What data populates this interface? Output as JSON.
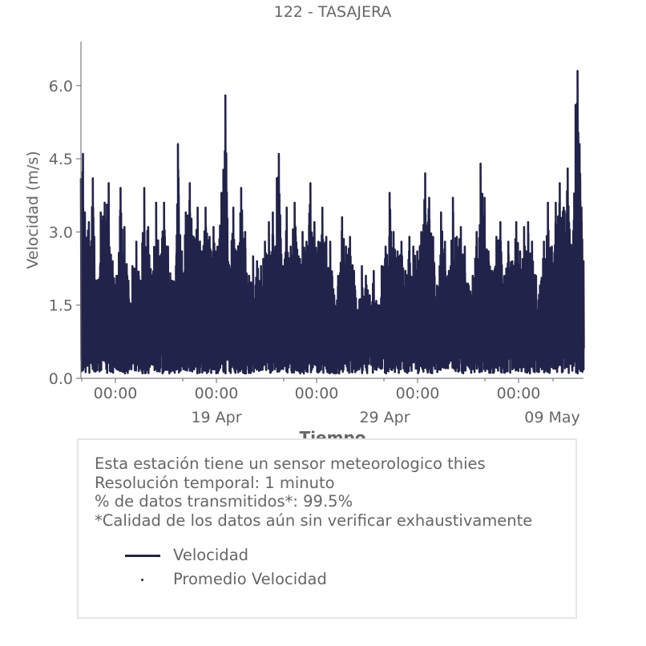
{
  "chart_data": {
    "type": "line",
    "title": "122 - TASAJERA",
    "xlabel": "Tiempo",
    "ylabel": "Velocidad (m/s)",
    "ylim": [
      0,
      6.9
    ],
    "yticks": [
      "0.0",
      "1.5",
      "3.0",
      "4.5",
      "6.0"
    ],
    "xticks_major": [
      "00:00",
      "00:00",
      "00:00",
      "00:00",
      "00:00"
    ],
    "xticks_minor": [
      "19 Apr",
      "29 Apr",
      "09 May"
    ],
    "grid": false,
    "color": "#22234a",
    "series": [
      {
        "name": "Velocidad",
        "peaks": [
          [
            0.0,
            4.1
          ],
          [
            0.01,
            4.6
          ],
          [
            0.02,
            3.4
          ],
          [
            0.04,
            3.2
          ],
          [
            0.06,
            4.1
          ],
          [
            0.08,
            2.0
          ],
          [
            0.1,
            3.4
          ],
          [
            0.12,
            3.6
          ],
          [
            0.14,
            4.0
          ],
          [
            0.16,
            2.4
          ],
          [
            0.18,
            2.1
          ],
          [
            0.2,
            3.9
          ],
          [
            0.22,
            3.1
          ],
          [
            0.24,
            2.0
          ],
          [
            0.26,
            2.3
          ],
          [
            0.28,
            2.8
          ],
          [
            0.3,
            2.0
          ],
          [
            0.32,
            3.9
          ],
          [
            0.34,
            3.1
          ],
          [
            0.36,
            2.1
          ],
          [
            0.38,
            3.6
          ],
          [
            0.4,
            2.5
          ],
          [
            0.42,
            3.6
          ],
          [
            0.44,
            2.7
          ],
          [
            0.46,
            2.0
          ],
          [
            0.48,
            2.3
          ],
          [
            0.49,
            4.8
          ],
          [
            0.51,
            2.6
          ],
          [
            0.53,
            3.4
          ],
          [
            0.55,
            4.0
          ],
          [
            0.57,
            2.9
          ],
          [
            0.59,
            3.5
          ],
          [
            0.61,
            2.6
          ],
          [
            0.63,
            3.5
          ],
          [
            0.65,
            2.9
          ],
          [
            0.67,
            3.1
          ],
          [
            0.69,
            2.7
          ],
          [
            0.71,
            3.8
          ],
          [
            0.73,
            5.8
          ],
          [
            0.75,
            2.3
          ],
          [
            0.77,
            3.5
          ],
          [
            0.79,
            2.6
          ],
          [
            0.81,
            3.9
          ],
          [
            0.83,
            3.0
          ],
          [
            0.85,
            2.1
          ],
          [
            0.87,
            2.5
          ],
          [
            0.89,
            2.4
          ],
          [
            0.91,
            2.3
          ],
          [
            0.93,
            2.8
          ],
          [
            0.95,
            3.2
          ],
          [
            0.97,
            3.4
          ],
          [
            0.99,
            4.1
          ],
          [
            1.0,
            4.6
          ],
          [
            1.02,
            2.3
          ],
          [
            1.04,
            3.5
          ],
          [
            1.06,
            2.7
          ],
          [
            1.08,
            3.6
          ],
          [
            1.1,
            2.5
          ],
          [
            1.12,
            3.0
          ],
          [
            1.14,
            2.8
          ],
          [
            1.16,
            4.0
          ],
          [
            1.18,
            3.2
          ],
          [
            1.2,
            2.8
          ],
          [
            1.22,
            3.5
          ],
          [
            1.24,
            2.9
          ],
          [
            1.26,
            2.8
          ],
          [
            1.28,
            1.7
          ],
          [
            1.3,
            2.1
          ],
          [
            1.32,
            3.3
          ],
          [
            1.34,
            2.7
          ],
          [
            1.36,
            2.9
          ],
          [
            1.38,
            2.2
          ],
          [
            1.4,
            1.4
          ],
          [
            1.42,
            2.3
          ],
          [
            1.44,
            2.1
          ],
          [
            1.46,
            1.7
          ],
          [
            1.48,
            2.2
          ],
          [
            1.5,
            1.5
          ],
          [
            1.52,
            2.3
          ],
          [
            1.54,
            2.7
          ],
          [
            1.56,
            3.8
          ],
          [
            1.58,
            3.0
          ],
          [
            1.6,
            2.6
          ],
          [
            1.62,
            2.8
          ],
          [
            1.64,
            2.2
          ],
          [
            1.66,
            2.9
          ],
          [
            1.68,
            2.7
          ],
          [
            1.7,
            2.6
          ],
          [
            1.72,
            3.0
          ],
          [
            1.74,
            4.2
          ],
          [
            1.76,
            3.7
          ],
          [
            1.78,
            2.9
          ],
          [
            1.8,
            1.9
          ],
          [
            1.82,
            3.4
          ],
          [
            1.84,
            2.8
          ],
          [
            1.86,
            2.2
          ],
          [
            1.88,
            3.7
          ],
          [
            1.9,
            2.9
          ],
          [
            1.92,
            3.1
          ],
          [
            1.94,
            2.7
          ],
          [
            1.96,
            1.9
          ],
          [
            1.98,
            2.1
          ],
          [
            2.0,
            3.0
          ],
          [
            2.02,
            4.4
          ],
          [
            2.04,
            3.7
          ],
          [
            2.06,
            2.6
          ],
          [
            2.08,
            2.2
          ],
          [
            2.1,
            2.9
          ],
          [
            2.12,
            3.2
          ],
          [
            2.14,
            2.1
          ],
          [
            2.16,
            2.8
          ],
          [
            2.18,
            2.4
          ],
          [
            2.2,
            3.2
          ],
          [
            2.22,
            2.6
          ],
          [
            2.24,
            3.1
          ],
          [
            2.26,
            3.2
          ],
          [
            2.28,
            2.8
          ],
          [
            2.3,
            2.1
          ],
          [
            2.32,
            1.9
          ],
          [
            2.34,
            2.8
          ],
          [
            2.36,
            3.6
          ],
          [
            2.38,
            2.7
          ],
          [
            2.4,
            3.6
          ],
          [
            2.42,
            4.0
          ],
          [
            2.44,
            3.5
          ],
          [
            2.46,
            4.3
          ],
          [
            2.48,
            2.7
          ],
          [
            2.5,
            5.6
          ],
          [
            2.51,
            6.3
          ],
          [
            2.52,
            4.8
          ],
          [
            2.53,
            3.5
          ],
          [
            2.54,
            2.4
          ]
        ]
      },
      {
        "name": "Promedio Velocidad"
      }
    ]
  },
  "info": {
    "lines": [
      "Esta estación tiene un sensor meteorologico thies",
      "Resolución temporal: 1 minuto",
      "% de datos transmitidos*: 99.5%",
      "*Calidad de los datos aún sin verificar exhaustivamente"
    ]
  }
}
